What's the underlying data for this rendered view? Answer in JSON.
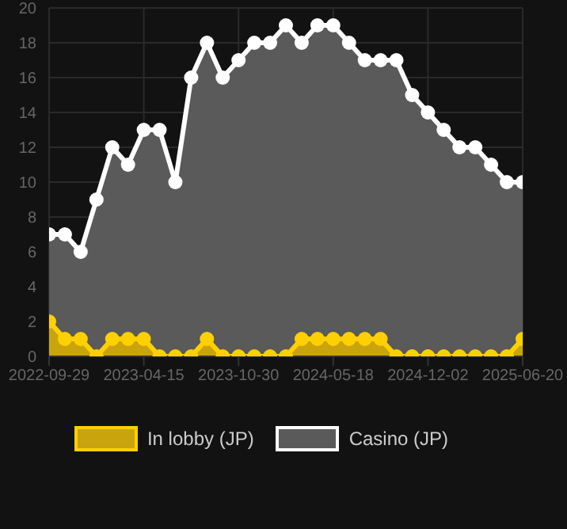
{
  "chart_data": {
    "type": "area",
    "categories": [
      "2022-09-29",
      null,
      null,
      null,
      null,
      null,
      "2023-04-15",
      null,
      null,
      null,
      null,
      null,
      "2023-10-30",
      null,
      null,
      null,
      null,
      null,
      "2024-05-18",
      null,
      null,
      null,
      null,
      null,
      "2024-12-02",
      null,
      null,
      null,
      null,
      null,
      "2025-06-20"
    ],
    "series": [
      {
        "name": "In lobby (JP)",
        "color": "#ffd000",
        "values": [
          2,
          1,
          1,
          0,
          1,
          1,
          1,
          0,
          0,
          0,
          1,
          0,
          0,
          0,
          0,
          0,
          1,
          1,
          1,
          1,
          1,
          1,
          0,
          0,
          0,
          0,
          0,
          0,
          0,
          0,
          1
        ]
      },
      {
        "name": "Casino (JP)",
        "color": "#ffffff",
        "values": [
          7,
          7,
          6,
          9,
          12,
          11,
          13,
          13,
          10,
          16,
          18,
          16,
          17,
          18,
          18,
          19,
          18,
          19,
          19,
          18,
          17,
          17,
          17,
          15,
          14,
          13,
          12,
          12,
          11,
          10,
          10
        ]
      }
    ],
    "ylim": [
      0,
      20
    ],
    "yticks": [
      0,
      2,
      4,
      6,
      8,
      10,
      12,
      14,
      16,
      18,
      20
    ],
    "grid": true,
    "legend": "bottom",
    "marker": "circle"
  }
}
